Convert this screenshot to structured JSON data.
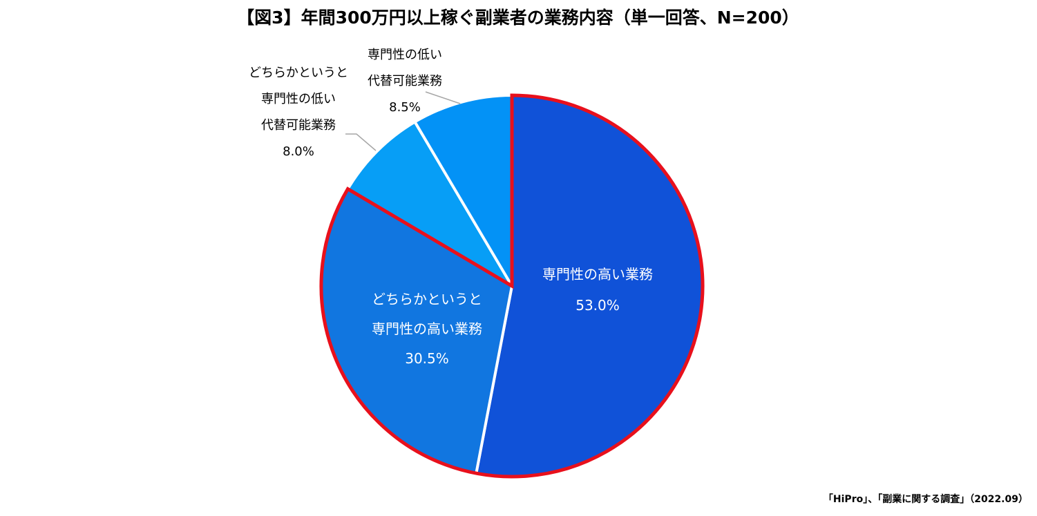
{
  "chart_data": {
    "type": "pie",
    "title": "【図3】年間300万円以上稼ぐ副業者の業務内容（単一回答、N=200）",
    "source": "「HiPro」、「副業に関する調査」（2022.09）",
    "slices": [
      {
        "lines": [
          "専門性の高い業務"
        ],
        "value": 53.0,
        "value_label": "53.0%",
        "color": "#1052d8",
        "highlight": true,
        "label_inside": true
      },
      {
        "lines": [
          "どちらかというと",
          "専門性の高い業務"
        ],
        "value": 30.5,
        "value_label": "30.5%",
        "color": "#1176e0",
        "highlight": true,
        "label_inside": true
      },
      {
        "lines": [
          "どちらかというと",
          "専門性の低い",
          "代替可能業務"
        ],
        "value": 8.0,
        "value_label": "8.0%",
        "color": "#079ef6",
        "highlight": false,
        "label_inside": false
      },
      {
        "lines": [
          "専門性の低い",
          "代替可能業務"
        ],
        "value": 8.5,
        "value_label": "8.5%",
        "color": "#0392f6",
        "highlight": false,
        "label_inside": false
      }
    ],
    "highlight_color": "#e8101c",
    "leader_color": "#a6a6a6"
  }
}
